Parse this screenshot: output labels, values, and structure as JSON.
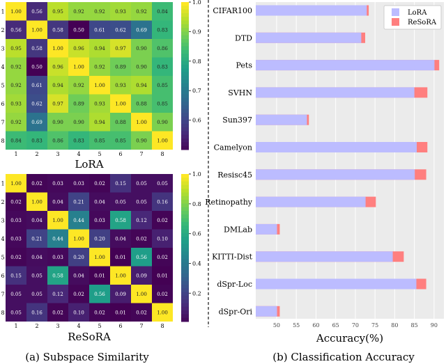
{
  "chart_data": [
    {
      "type": "heatmap",
      "title": "LoRA",
      "row_labels": [
        "1",
        "2",
        "3",
        "4",
        "5",
        "6",
        "7",
        "8"
      ],
      "col_labels": [
        "1",
        "2",
        "3",
        "4",
        "5",
        "6",
        "7",
        "8"
      ],
      "colorscale": "viridis",
      "vmin": 0.5,
      "vmax": 1.0,
      "colorbar_ticks": [
        "0.6",
        "0.7",
        "0.8",
        "0.9",
        "1.0"
      ],
      "values": [
        [
          1.0,
          0.56,
          0.95,
          0.92,
          0.92,
          0.93,
          0.92,
          0.84
        ],
        [
          0.56,
          1.0,
          0.58,
          0.5,
          0.61,
          0.62,
          0.69,
          0.83
        ],
        [
          0.95,
          0.58,
          1.0,
          0.96,
          0.94,
          0.97,
          0.9,
          0.86
        ],
        [
          0.92,
          0.5,
          0.96,
          1.0,
          0.92,
          0.89,
          0.9,
          0.83
        ],
        [
          0.92,
          0.61,
          0.94,
          0.92,
          1.0,
          0.93,
          0.94,
          0.85
        ],
        [
          0.93,
          0.62,
          0.97,
          0.89,
          0.93,
          1.0,
          0.88,
          0.85
        ],
        [
          0.92,
          0.69,
          0.9,
          0.9,
          0.94,
          0.88,
          1.0,
          0.9
        ],
        [
          0.84,
          0.83,
          0.86,
          0.83,
          0.85,
          0.85,
          0.9,
          1.0
        ]
      ]
    },
    {
      "type": "heatmap",
      "title": "ReSoRA",
      "row_labels": [
        "1",
        "2",
        "3",
        "4",
        "5",
        "6",
        "7",
        "8"
      ],
      "col_labels": [
        "1",
        "2",
        "3",
        "4",
        "5",
        "6",
        "7",
        "8"
      ],
      "colorscale": "viridis",
      "vmin": 0.01,
      "vmax": 1.0,
      "colorbar_ticks": [
        "0.2",
        "0.4",
        "0.6",
        "0.8",
        "1.0"
      ],
      "values": [
        [
          1.0,
          0.02,
          0.03,
          0.03,
          0.02,
          0.15,
          0.05,
          0.05
        ],
        [
          0.02,
          1.0,
          0.04,
          0.21,
          0.04,
          0.05,
          0.05,
          0.16
        ],
        [
          0.03,
          0.04,
          1.0,
          0.44,
          0.03,
          0.58,
          0.12,
          0.02
        ],
        [
          0.03,
          0.21,
          0.44,
          1.0,
          0.2,
          0.04,
          0.02,
          0.1
        ],
        [
          0.02,
          0.04,
          0.03,
          0.2,
          1.0,
          0.01,
          0.56,
          0.02
        ],
        [
          0.15,
          0.05,
          0.58,
          0.04,
          0.01,
          1.0,
          0.09,
          0.01
        ],
        [
          0.05,
          0.05,
          0.12,
          0.02,
          0.56,
          0.09,
          1.0,
          0.02
        ],
        [
          0.05,
          0.16,
          0.02,
          0.1,
          0.02,
          0.01,
          0.02,
          1.0
        ]
      ]
    },
    {
      "type": "bar",
      "orientation": "horizontal",
      "xlabel": "Accuracy(%)",
      "xlim": [
        44.7,
        92.5
      ],
      "xticks": [
        "50",
        "55",
        "60",
        "65",
        "70",
        "75",
        "80",
        "85",
        "90"
      ],
      "grid": true,
      "legend": "top-right",
      "categories": [
        "CIFAR100",
        "DTD",
        "Pets",
        "SVHN",
        "Sun397",
        "Camelyon",
        "Resisc45",
        "Retinopathy",
        "DMLab",
        "KITTI-Dist",
        "dSpr-Loc",
        "dSpr-Ori"
      ],
      "series": [
        {
          "name": "LoRA",
          "color": "#bcbcff",
          "values": [
            72.9,
            71.5,
            90.1,
            85.0,
            57.7,
            85.6,
            85.1,
            72.6,
            50.1,
            79.5,
            85.5,
            50.1
          ]
        },
        {
          "name": "ReSoRA",
          "color": "#ff7f7f",
          "values": [
            73.4,
            72.5,
            91.3,
            88.3,
            58.2,
            88.3,
            88.0,
            75.2,
            50.8,
            82.3,
            88.0,
            50.8
          ]
        }
      ]
    }
  ],
  "captions": {
    "left": "(a) Subspace Similarity",
    "right": "(b) Classification Accuracy"
  }
}
